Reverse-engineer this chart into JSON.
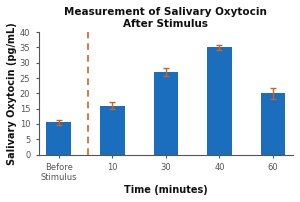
{
  "title_line1": "Measurement of Salivary Oxytocin",
  "title_line2": "After Stimulus",
  "xlabel": "Time (minutes)",
  "ylabel": "Salivary Oxytocin (pg/mL)",
  "categories": [
    "Before\nStimulus",
    "10",
    "30",
    "40",
    "60"
  ],
  "x_positions": [
    0,
    1.2,
    2.4,
    3.6,
    4.8
  ],
  "values": [
    10.5,
    16.0,
    27.0,
    35.0,
    20.0
  ],
  "errors": [
    0.7,
    1.1,
    1.3,
    0.9,
    1.8
  ],
  "bar_color": "#1A6EBD",
  "error_color": "#D4631A",
  "dashed_line_color": "#D4631A",
  "dashed_line_x": 0.65,
  "ylim": [
    0,
    40
  ],
  "yticks": [
    0,
    5,
    10,
    15,
    20,
    25,
    30,
    35,
    40
  ],
  "fig_background": "#FFFFFF",
  "plot_background": "#FFFFFF",
  "title_fontsize": 7.5,
  "axis_label_fontsize": 7,
  "tick_fontsize": 6,
  "bar_width": 0.55,
  "border_color": "#CCCCCC"
}
